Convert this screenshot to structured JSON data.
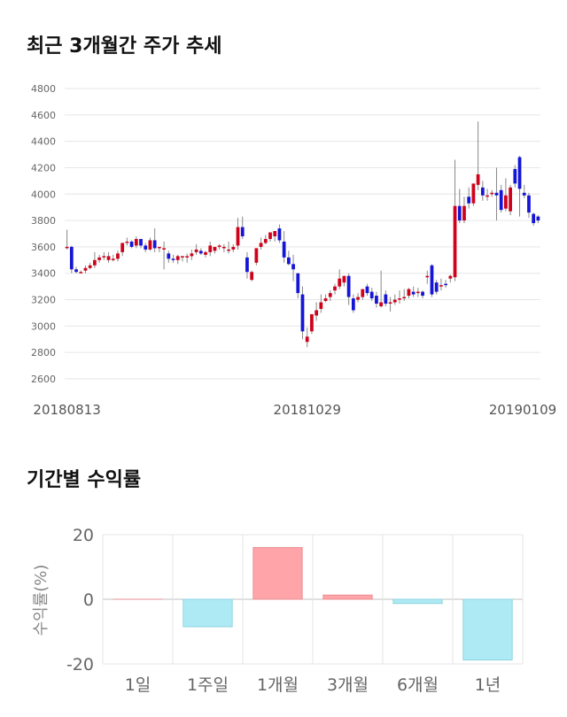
{
  "sections": {
    "price_title": "최근 3개월간 주가 추세",
    "returns_title": "기간별 수익률"
  },
  "chart_data": [
    {
      "type": "candlestick",
      "title": "최근 3개월간 주가 추세",
      "ylim": [
        2600,
        4800
      ],
      "yticks": [
        2600,
        2800,
        3000,
        3200,
        3400,
        3600,
        3800,
        4000,
        4200,
        4400,
        4600,
        4800
      ],
      "xtick_labels": [
        "20180813",
        "20181029",
        "20190109"
      ],
      "xtick_index": [
        0,
        52,
        104
      ],
      "grid": true,
      "colors": {
        "up": "#d0021b",
        "down": "#1515d8",
        "wick": "#888888"
      },
      "candles": [
        [
          3600,
          3730,
          3600,
          3580
        ],
        [
          3600,
          3610,
          3430,
          3400
        ],
        [
          3430,
          3450,
          3410,
          3400
        ],
        [
          3410,
          3420,
          3410,
          3400
        ],
        [
          3420,
          3460,
          3440,
          3400
        ],
        [
          3440,
          3480,
          3460,
          3430
        ],
        [
          3460,
          3560,
          3500,
          3440
        ],
        [
          3500,
          3540,
          3520,
          3480
        ],
        [
          3520,
          3560,
          3530,
          3500
        ],
        [
          3500,
          3560,
          3530,
          3480
        ],
        [
          3500,
          3540,
          3510,
          3490
        ],
        [
          3510,
          3570,
          3550,
          3490
        ],
        [
          3560,
          3600,
          3630,
          3530
        ],
        [
          3630,
          3670,
          3640,
          3610
        ],
        [
          3640,
          3650,
          3600,
          3590
        ],
        [
          3610,
          3680,
          3660,
          3590
        ],
        [
          3660,
          3660,
          3610,
          3590
        ],
        [
          3610,
          3630,
          3580,
          3560
        ],
        [
          3580,
          3670,
          3650,
          3570
        ],
        [
          3650,
          3740,
          3590,
          3560
        ],
        [
          3590,
          3600,
          3600,
          3560
        ],
        [
          3590,
          3640,
          3590,
          3430
        ],
        [
          3550,
          3570,
          3510,
          3480
        ],
        [
          3510,
          3540,
          3500,
          3480
        ],
        [
          3500,
          3540,
          3530,
          3470
        ],
        [
          3520,
          3530,
          3530,
          3490
        ],
        [
          3520,
          3550,
          3530,
          3480
        ],
        [
          3530,
          3580,
          3550,
          3500
        ],
        [
          3560,
          3620,
          3580,
          3540
        ],
        [
          3570,
          3590,
          3550,
          3540
        ],
        [
          3540,
          3570,
          3560,
          3520
        ],
        [
          3560,
          3640,
          3610,
          3530
        ],
        [
          3570,
          3590,
          3600,
          3550
        ],
        [
          3600,
          3620,
          3610,
          3580
        ],
        [
          3590,
          3620,
          3600,
          3560
        ],
        [
          3580,
          3640,
          3580,
          3550
        ],
        [
          3580,
          3620,
          3600,
          3560
        ],
        [
          3610,
          3820,
          3750,
          3580
        ],
        [
          3750,
          3830,
          3680,
          3660
        ],
        [
          3520,
          3560,
          3410,
          3360
        ],
        [
          3350,
          3420,
          3410,
          3340
        ],
        [
          3480,
          3590,
          3590,
          3460
        ],
        [
          3600,
          3670,
          3630,
          3580
        ],
        [
          3630,
          3690,
          3660,
          3620
        ],
        [
          3660,
          3710,
          3710,
          3640
        ],
        [
          3680,
          3720,
          3720,
          3640
        ],
        [
          3740,
          3770,
          3650,
          3630
        ],
        [
          3640,
          3720,
          3520,
          3480
        ],
        [
          3520,
          3570,
          3470,
          3460
        ],
        [
          3470,
          3540,
          3430,
          3340
        ],
        [
          3400,
          3400,
          3250,
          3210
        ],
        [
          3240,
          3300,
          2960,
          2900
        ],
        [
          2880,
          2990,
          2920,
          2840
        ],
        [
          2960,
          3050,
          3090,
          2940
        ],
        [
          3080,
          3180,
          3120,
          3040
        ],
        [
          3130,
          3240,
          3180,
          3100
        ],
        [
          3190,
          3240,
          3210,
          3180
        ],
        [
          3220,
          3270,
          3250,
          3190
        ],
        [
          3270,
          3320,
          3300,
          3240
        ],
        [
          3300,
          3430,
          3360,
          3280
        ],
        [
          3330,
          3380,
          3380,
          3300
        ],
        [
          3380,
          3400,
          3220,
          3160
        ],
        [
          3210,
          3240,
          3120,
          3100
        ],
        [
          3200,
          3250,
          3220,
          3180
        ],
        [
          3220,
          3280,
          3280,
          3200
        ],
        [
          3300,
          3320,
          3250,
          3230
        ],
        [
          3260,
          3290,
          3210,
          3190
        ],
        [
          3230,
          3260,
          3170,
          3140
        ],
        [
          3150,
          3420,
          3180,
          3140
        ],
        [
          3240,
          3270,
          3170,
          3150
        ],
        [
          3170,
          3220,
          3180,
          3110
        ],
        [
          3180,
          3240,
          3200,
          3160
        ],
        [
          3200,
          3270,
          3210,
          3170
        ],
        [
          3220,
          3280,
          3220,
          3190
        ],
        [
          3230,
          3290,
          3280,
          3210
        ],
        [
          3260,
          3300,
          3240,
          3220
        ],
        [
          3250,
          3290,
          3260,
          3220
        ],
        [
          3260,
          3270,
          3230,
          3210
        ],
        [
          3370,
          3420,
          3380,
          3320
        ],
        [
          3460,
          3470,
          3240,
          3220
        ],
        [
          3330,
          3350,
          3260,
          3240
        ],
        [
          3300,
          3360,
          3310,
          3270
        ],
        [
          3320,
          3350,
          3310,
          3290
        ],
        [
          3360,
          3390,
          3380,
          3330
        ],
        [
          3370,
          4260,
          3910,
          3340
        ],
        [
          3910,
          4040,
          3800,
          3780
        ],
        [
          3800,
          3980,
          3910,
          3780
        ],
        [
          3980,
          4050,
          3930,
          3890
        ],
        [
          3930,
          4040,
          4080,
          3910
        ],
        [
          4070,
          4550,
          4150,
          4030
        ],
        [
          4050,
          4100,
          3990,
          3950
        ],
        [
          3990,
          4040,
          3990,
          3950
        ],
        [
          4000,
          4030,
          4010,
          3980
        ],
        [
          4010,
          4200,
          3990,
          3800
        ],
        [
          4030,
          4070,
          3880,
          3860
        ],
        [
          3890,
          4120,
          3990,
          3870
        ],
        [
          3870,
          4070,
          4050,
          3840
        ],
        [
          4190,
          4220,
          4080,
          4050
        ],
        [
          4280,
          4290,
          4040,
          3830
        ],
        [
          4010,
          4070,
          3990,
          3970
        ],
        [
          3990,
          4010,
          3860,
          3820
        ],
        [
          3850,
          3860,
          3780,
          3760
        ],
        [
          3830,
          3840,
          3800,
          3780
        ]
      ]
    },
    {
      "type": "bar",
      "title": "기간별 수익률",
      "categories": [
        "1일",
        "1주일",
        "1개월",
        "3개월",
        "6개월",
        "1년"
      ],
      "values": [
        0.0,
        -8.5,
        16.0,
        1.3,
        -1.3,
        -18.8
      ],
      "ylabel": "수익률(%)",
      "ylim": [
        -20,
        20
      ],
      "yticks": [
        -20,
        0,
        20
      ],
      "ytick_labels": [
        "-20",
        "0",
        "20"
      ],
      "grid": true,
      "colors": {
        "positive_fill": "#ffa4a8",
        "positive_stroke": "#e88e92",
        "negative_fill": "#aeeaf4",
        "negative_stroke": "#8fd3e0"
      }
    }
  ]
}
